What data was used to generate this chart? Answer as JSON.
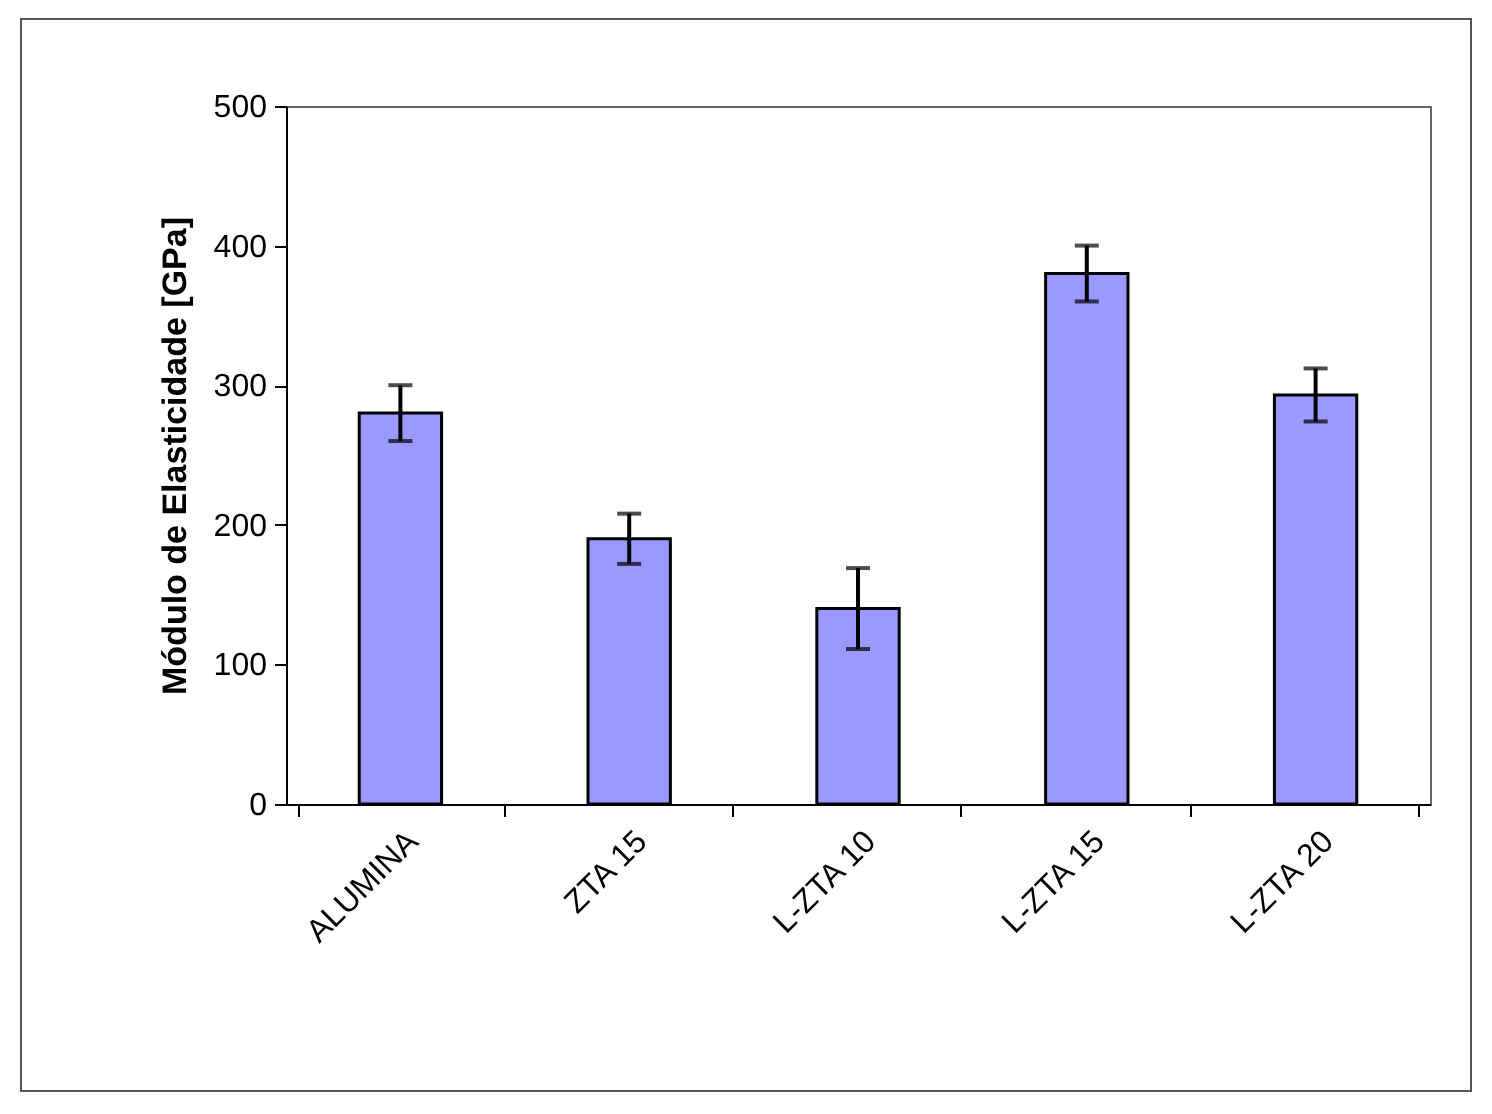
{
  "chart_data": {
    "type": "bar",
    "ylabel": "Módulo de Elasticidade [GPa]",
    "categories": [
      "ALUMINA",
      "ZTA 15",
      "L-ZTA 10",
      "L-ZTA 15",
      "L-ZTA 20"
    ],
    "values": [
      280,
      190,
      140,
      380,
      293
    ],
    "errors": [
      20,
      18,
      29,
      20,
      19
    ],
    "color": "#9999ff",
    "ylim": [
      0,
      500
    ],
    "yticks": [
      0,
      100,
      200,
      300,
      400,
      500
    ],
    "grid": false
  }
}
